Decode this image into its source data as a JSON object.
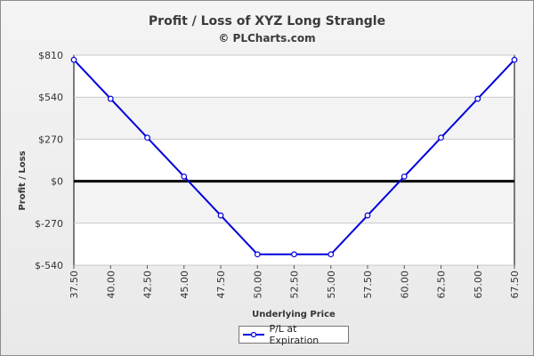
{
  "chart_data": {
    "type": "line",
    "title": "Profit / Loss of XYZ Long Strangle",
    "subtitle": "© PLCharts.com",
    "xlabel": "Underlying Price",
    "ylabel": "Profit / Loss",
    "x": [
      "37.50",
      "40.00",
      "42.50",
      "45.00",
      "47.50",
      "50.00",
      "52.50",
      "55.00",
      "57.50",
      "60.00",
      "62.50",
      "65.00",
      "67.50"
    ],
    "y_ticks": [
      "$810",
      "$540",
      "$270",
      "$0",
      "$-270",
      "$-540"
    ],
    "ylim": [
      -540,
      810
    ],
    "series": [
      {
        "name": "P/L at Expiration",
        "color": "#0000dd",
        "values": [
          780,
          530,
          280,
          30,
          -220,
          -470,
          -470,
          -470,
          -220,
          30,
          280,
          530,
          780
        ]
      }
    ],
    "zero_line": true,
    "legend_position": "bottom-center",
    "grid": true
  }
}
